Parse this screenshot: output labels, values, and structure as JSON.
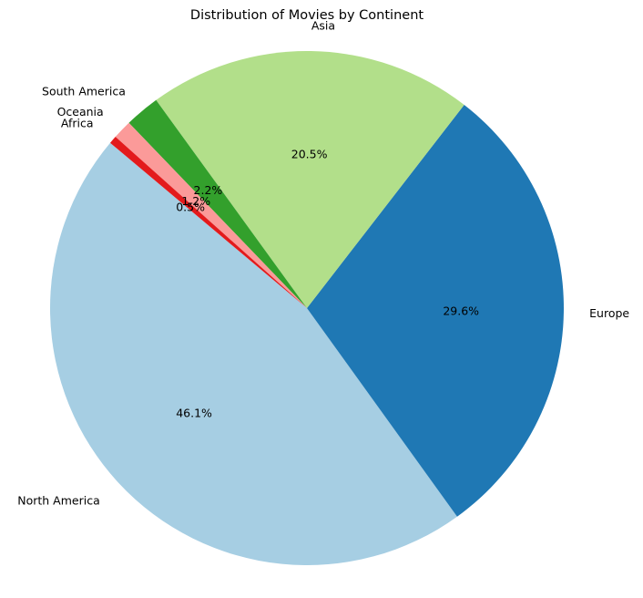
{
  "chart_data": {
    "type": "pie",
    "title": "Distribution of Movies by Continent",
    "start_angle_deg": 140,
    "direction": "counterclockwise",
    "slices": [
      {
        "label": "North America",
        "value": 46.1,
        "pct_label": "46.1%",
        "color": "#a6cee3"
      },
      {
        "label": "Europe",
        "value": 29.6,
        "pct_label": "29.6%",
        "color": "#1f78b4"
      },
      {
        "label": "Asia",
        "value": 20.5,
        "pct_label": "20.5%",
        "color": "#b2df8a"
      },
      {
        "label": "South America",
        "value": 2.2,
        "pct_label": "2.2%",
        "color": "#33a02c"
      },
      {
        "label": "Oceania",
        "value": 1.2,
        "pct_label": "1.2%",
        "color": "#fb9a99"
      },
      {
        "label": "Africa",
        "value": 0.5,
        "pct_label": "0.5%",
        "color": "#e31a1c"
      }
    ]
  }
}
